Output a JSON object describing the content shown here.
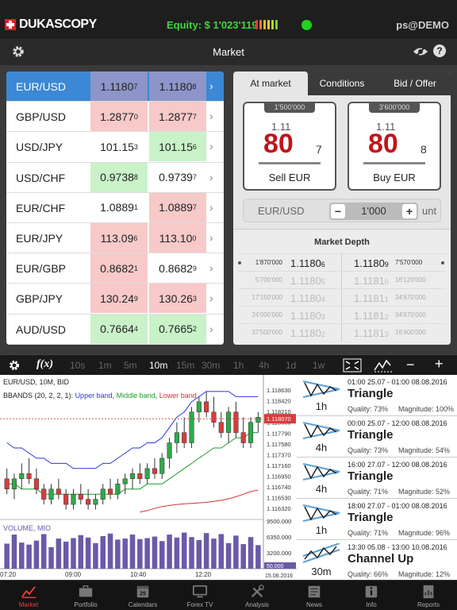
{
  "header": {
    "brand": "DUKASCOPY",
    "equity_label": "Equity: $ 1'023'119",
    "user": "ps@DEMO",
    "equity_bar_colors": [
      "#e23b3b",
      "#f07a2a",
      "#f2b722",
      "#d7d322",
      "#b6d522",
      "#80d12b"
    ],
    "status_color": "#1fd31f"
  },
  "subbar": {
    "title": "Market"
  },
  "market_rows": [
    {
      "pair": "EUR/USD",
      "bid_main": "1.1180",
      "bid_pip": "7",
      "ask_main": "1.1180",
      "ask_pip": "8",
      "bid_color": "blue",
      "ask_color": "blue",
      "selected": true
    },
    {
      "pair": "GBP/USD",
      "bid_main": "1.2877",
      "bid_pip": "0",
      "ask_main": "1.2877",
      "ask_pip": "7",
      "bid_color": "red",
      "ask_color": "red"
    },
    {
      "pair": "USD/JPY",
      "bid_main": "101.15",
      "bid_pip": "3",
      "ask_main": "101.15",
      "ask_pip": "6",
      "bid_color": "white",
      "ask_color": "green"
    },
    {
      "pair": "USD/CHF",
      "bid_main": "0.9738",
      "bid_pip": "8",
      "ask_main": "0.9739",
      "ask_pip": "7",
      "bid_color": "green",
      "ask_color": "white"
    },
    {
      "pair": "EUR/CHF",
      "bid_main": "1.0889",
      "bid_pip": "1",
      "ask_main": "1.0889",
      "ask_pip": "7",
      "bid_color": "white",
      "ask_color": "red"
    },
    {
      "pair": "EUR/JPY",
      "bid_main": "113.09",
      "bid_pip": "6",
      "ask_main": "113.10",
      "ask_pip": "0",
      "bid_color": "red",
      "ask_color": "red"
    },
    {
      "pair": "EUR/GBP",
      "bid_main": "0.8682",
      "bid_pip": "1",
      "ask_main": "0.8682",
      "ask_pip": "9",
      "bid_color": "red",
      "ask_color": "white"
    },
    {
      "pair": "GBP/JPY",
      "bid_main": "130.24",
      "bid_pip": "9",
      "ask_main": "130.26",
      "ask_pip": "3",
      "bid_color": "red",
      "ask_color": "red"
    },
    {
      "pair": "AUD/USD",
      "bid_main": "0.7664",
      "bid_pip": "4",
      "ask_main": "0.7665",
      "ask_pip": "2",
      "bid_color": "green",
      "ask_color": "green"
    }
  ],
  "panel": {
    "tabs": [
      "At market",
      "Conditions",
      "Bid / Offer"
    ],
    "sell": {
      "amount": "1'500'000",
      "p1": "1.11",
      "p2": "80",
      "p3": "7",
      "label": "Sell EUR"
    },
    "buy": {
      "amount": "3'600'000",
      "p1": "1.11",
      "p2": "80",
      "p3": "8",
      "label": "Buy EUR"
    },
    "qty": {
      "currency": "EUR/USD",
      "value": "1'000",
      "unit": "unt",
      "minus": "−",
      "plus": "+"
    },
    "depth_title": "Market Depth",
    "depth": [
      {
        "bq": "1'870'000",
        "bp": "1.1180",
        "bps": "6",
        "ap": "1.1180",
        "aps": "9",
        "aq": "7'570'000"
      },
      {
        "bq": "5'700'000",
        "bp": "1.1180",
        "bps": "5",
        "ap": "1.1181",
        "aps": "0",
        "aq": "16'120'000"
      },
      {
        "bq": "17'150'000",
        "bp": "1.1180",
        "bps": "4",
        "ap": "1.1181",
        "aps": "1",
        "aq": "34'670'000"
      },
      {
        "bq": "24'000'000",
        "bp": "1.1180",
        "bps": "3",
        "ap": "1.1181",
        "aps": "2",
        "aq": "34'670'000"
      },
      {
        "bq": "37'500'000",
        "bp": "1.1180",
        "bps": "2",
        "ap": "1.1181",
        "aps": "3",
        "aq": "16'400'000"
      }
    ]
  },
  "chart_toolbar": {
    "fx": "f(x)",
    "timeframes": [
      "10s",
      "1m",
      "5m",
      "10m",
      "15m",
      "30m",
      "1h",
      "4h",
      "1d",
      "1w"
    ],
    "active": "10m"
  },
  "chart": {
    "title": "EUR/USD, 10M, BID",
    "bbands_label": "BBANDS (20, 2, 2, 1):",
    "upper": "Upper band",
    "middle": "Middle band",
    "lower": "Lower band",
    "volume_label": "VOLUME, MIO",
    "price_ticks": [
      "1.118630",
      "1.118420",
      "1.118210",
      "1.118000",
      "1.117790",
      "1.117580",
      "1.117370",
      "1.117160",
      "1.116950",
      "1.116740",
      "1.116530",
      "1.116320"
    ],
    "current_price": "1.118070",
    "volume_ticks": [
      "9500.000",
      "6350.000",
      "3200.000"
    ],
    "volume_current": "50.000",
    "time_ticks": [
      "07:20",
      "09:00",
      "10:40",
      "12:20"
    ],
    "date_label": "15.08.2016",
    "colors": {
      "up": "#2ea84a",
      "down": "#d83c3c",
      "upper": "#2b35d8",
      "middle": "#1f9a2a",
      "lower": "#d83030",
      "volume": "#6a5aa8"
    }
  },
  "chart_data": {
    "type": "candlestick",
    "title": "EUR/USD, 10M, BID",
    "ylim": [
      1.1162,
      1.1188
    ],
    "candles": [
      [
        1.1169,
        1.1171,
        1.1166,
        1.1167
      ],
      [
        1.1167,
        1.117,
        1.1165,
        1.1169
      ],
      [
        1.1169,
        1.1172,
        1.1167,
        1.117
      ],
      [
        1.117,
        1.1173,
        1.1168,
        1.1169
      ],
      [
        1.1169,
        1.1171,
        1.1166,
        1.1167
      ],
      [
        1.1167,
        1.1168,
        1.1164,
        1.1165
      ],
      [
        1.1165,
        1.1168,
        1.1164,
        1.1167
      ],
      [
        1.1167,
        1.1169,
        1.1165,
        1.1166
      ],
      [
        1.1166,
        1.1167,
        1.1163,
        1.1164
      ],
      [
        1.1164,
        1.1167,
        1.1163,
        1.1166
      ],
      [
        1.1166,
        1.1168,
        1.1164,
        1.1165
      ],
      [
        1.1165,
        1.1167,
        1.1163,
        1.1164
      ],
      [
        1.1164,
        1.1166,
        1.1163,
        1.1165
      ],
      [
        1.1165,
        1.1168,
        1.1164,
        1.1167
      ],
      [
        1.1167,
        1.1169,
        1.1165,
        1.1166
      ],
      [
        1.1166,
        1.1169,
        1.1165,
        1.1168
      ],
      [
        1.1168,
        1.117,
        1.1166,
        1.1169
      ],
      [
        1.1169,
        1.1171,
        1.1167,
        1.117
      ],
      [
        1.117,
        1.1172,
        1.1168,
        1.1169
      ],
      [
        1.1169,
        1.1172,
        1.1168,
        1.1171
      ],
      [
        1.1171,
        1.1173,
        1.1169,
        1.117
      ],
      [
        1.117,
        1.1174,
        1.1169,
        1.1173
      ],
      [
        1.1173,
        1.1177,
        1.1171,
        1.1176
      ],
      [
        1.1176,
        1.118,
        1.1174,
        1.1178
      ],
      [
        1.1178,
        1.1181,
        1.1175,
        1.1176
      ],
      [
        1.1176,
        1.1183,
        1.1175,
        1.1182
      ],
      [
        1.1182,
        1.1185,
        1.118,
        1.1184
      ],
      [
        1.1184,
        1.1186,
        1.1181,
        1.1182
      ],
      [
        1.1182,
        1.1185,
        1.1179,
        1.118
      ],
      [
        1.118,
        1.1182,
        1.1177,
        1.1178
      ],
      [
        1.1178,
        1.1183,
        1.1176,
        1.1182
      ],
      [
        1.1182,
        1.1184,
        1.1177,
        1.1178
      ],
      [
        1.1178,
        1.1181,
        1.1175,
        1.1176
      ],
      [
        1.1176,
        1.1181,
        1.1175,
        1.118
      ],
      [
        1.118,
        1.1182,
        1.1178,
        1.1181
      ]
    ],
    "upper_band": [
      1.1176,
      1.1175,
      1.1175,
      1.1174,
      1.1173,
      1.1173,
      1.1172,
      1.1172,
      1.1172,
      1.1171,
      1.1171,
      1.1171,
      1.1171,
      1.1172,
      1.1172,
      1.1173,
      1.1174,
      1.1175,
      1.1175,
      1.1176,
      1.1176,
      1.1177,
      1.1179,
      1.1181,
      1.1182,
      1.1184,
      1.1185,
      1.1186,
      1.1186,
      1.1186,
      1.1186,
      1.1185,
      1.1185,
      1.1185,
      1.1185
    ],
    "middle_band": [
      1.1168,
      1.1168,
      1.1167,
      1.1167,
      1.1167,
      1.1166,
      1.1166,
      1.1166,
      1.1166,
      1.1166,
      1.1166,
      1.1166,
      1.1166,
      1.1166,
      1.1166,
      1.1166,
      1.1167,
      1.1167,
      1.1167,
      1.1168,
      1.1168,
      1.1168,
      1.1169,
      1.117,
      1.1171,
      1.1172,
      1.1173,
      1.1174,
      1.1175,
      1.1175,
      1.1176,
      1.1177,
      1.1177,
      1.1178,
      1.1178
    ],
    "lower_band": [
      null,
      null,
      null,
      null,
      null,
      null,
      null,
      null,
      null,
      null,
      null,
      null,
      null,
      null,
      null,
      null,
      null,
      null,
      1.11625,
      1.11628,
      1.11632,
      1.11636,
      1.11638,
      1.1164,
      1.11641,
      1.11642,
      1.11643,
      1.11644,
      1.11646,
      1.11648,
      1.11651,
      1.11655,
      1.1166,
      1.11665,
      1.11668
    ],
    "volume": [
      5000,
      6800,
      5200,
      4800,
      5600,
      6900,
      4300,
      6000,
      5400,
      6100,
      6700,
      6200,
      5100,
      6500,
      7000,
      5800,
      6000,
      6800,
      5900,
      6100,
      6400,
      5500,
      6800,
      6200,
      7200,
      6300,
      5700,
      7100,
      6000,
      6900,
      5100,
      6600,
      4900,
      6300,
      4700
    ],
    "volume_ylim": [
      0,
      9500
    ]
  },
  "patterns": [
    {
      "time": "01:00 25.07 - 01:00 08.08.2016",
      "name": "Triangle",
      "tf": "1h",
      "quality": "Quality: 73%",
      "magnitude": "Magnitude: 100%"
    },
    {
      "time": "00:00 25.07 - 12:00 08.08.2016",
      "name": "Triangle",
      "tf": "4h",
      "quality": "Quality: 73%",
      "magnitude": "Magnitude: 54%"
    },
    {
      "time": "16:00 27.07 - 12:00 08.08.2016",
      "name": "Triangle",
      "tf": "4h",
      "quality": "Quality: 71%",
      "magnitude": "Magnitude: 52%"
    },
    {
      "time": "18:00 27.07 - 01:00 08.08.2016",
      "name": "Triangle",
      "tf": "1h",
      "quality": "Quality: 71%",
      "magnitude": "Magnitude: 96%"
    },
    {
      "time": "13:30 05.08 - 13:00 10.08.2016",
      "name": "Channel Up",
      "tf": "30m",
      "quality": "Quality: 66%",
      "magnitude": "Magnitude: 12%"
    }
  ],
  "nav": [
    {
      "label": "Market",
      "icon": "chart-up-icon",
      "active": true
    },
    {
      "label": "Portfolio",
      "icon": "briefcase-icon"
    },
    {
      "label": "Calendars",
      "icon": "calendar-icon",
      "day": "25"
    },
    {
      "label": "Forex TV",
      "icon": "tv-icon"
    },
    {
      "label": "Analysis",
      "icon": "tools-icon"
    },
    {
      "label": "News",
      "icon": "newspaper-icon"
    },
    {
      "label": "Info",
      "icon": "info-icon"
    },
    {
      "label": "Reports",
      "icon": "report-icon"
    }
  ]
}
